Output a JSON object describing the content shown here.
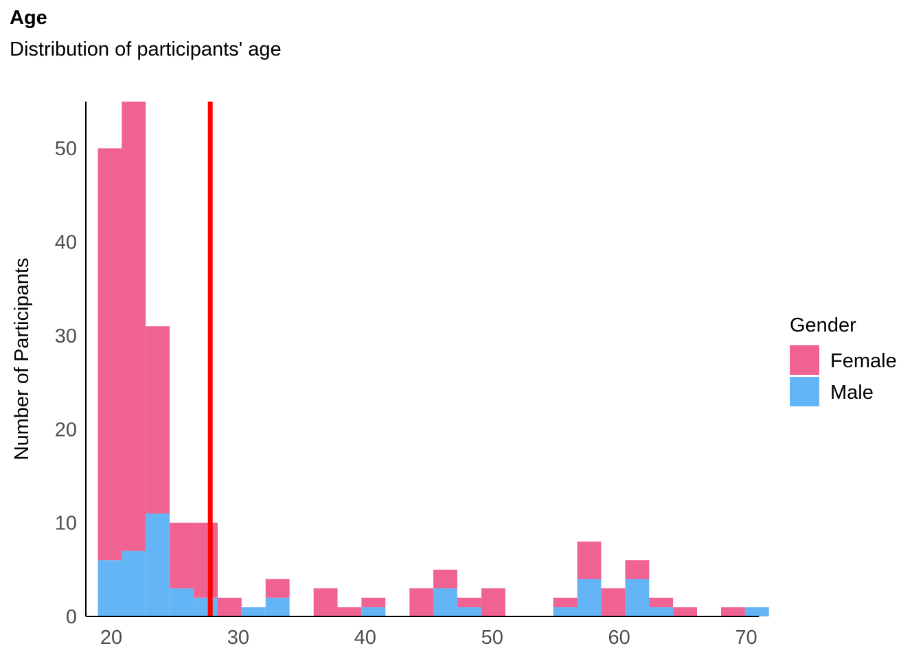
{
  "title": "Age",
  "subtitle": "Distribution of participants' age",
  "chart_data": {
    "type": "bar",
    "stacked": true,
    "title": "Age",
    "subtitle": "Distribution of participants' age",
    "xlabel": "",
    "ylabel": "Number of Participants",
    "x_ticks": [
      20,
      30,
      40,
      50,
      60,
      70
    ],
    "y_ticks": [
      0,
      10,
      20,
      30,
      40,
      50
    ],
    "xlim": [
      18,
      71
    ],
    "ylim": [
      0,
      55
    ],
    "bin_width": 1.887,
    "bin_centers": [
      19.89,
      21.77,
      23.66,
      25.55,
      27.44,
      29.32,
      31.21,
      33.1,
      34.99,
      36.88,
      38.76,
      40.65,
      42.54,
      44.43,
      46.31,
      48.2,
      50.09,
      51.98,
      53.87,
      55.75,
      57.64,
      59.53,
      61.42,
      63.3,
      65.19,
      67.08,
      68.97,
      70.85
    ],
    "series": [
      {
        "name": "Male",
        "color": "#64b5f6",
        "values": [
          6,
          7,
          11,
          3,
          2,
          0,
          1,
          2,
          0,
          0,
          0,
          1,
          0,
          0,
          3,
          1,
          0,
          0,
          0,
          1,
          4,
          0,
          4,
          1,
          0,
          0,
          0,
          1
        ]
      },
      {
        "name": "Female",
        "color": "#f06292",
        "values": [
          44,
          48,
          20,
          7,
          8,
          2,
          0,
          2,
          0,
          3,
          1,
          1,
          0,
          3,
          2,
          1,
          3,
          0,
          0,
          1,
          4,
          3,
          2,
          1,
          1,
          0,
          1,
          0
        ]
      }
    ],
    "reference_line": {
      "x": 27.8,
      "color": "#ff0000"
    },
    "legend": {
      "title": "Gender",
      "position": "right",
      "entries": [
        "Female",
        "Male"
      ]
    },
    "grid": false
  }
}
